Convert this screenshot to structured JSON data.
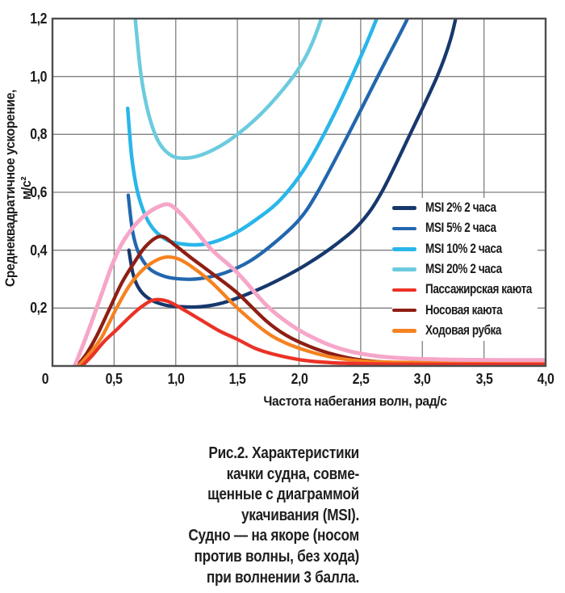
{
  "chart_data": {
    "type": "line",
    "title": "",
    "xlabel": "Частота набегания волн, рад/с",
    "ylabel": "Среднеквадратичное ускорение, м/с²",
    "xlim": [
      0,
      4
    ],
    "ylim": [
      0,
      1.2
    ],
    "grid": true,
    "grid_step_x": 0.5,
    "grid_step_y": 0.2,
    "style": {
      "grid_color": "#7f7f7f",
      "frame_color": "#4d4d4d",
      "text_color": "#1b1b1b",
      "background": "#ffffff"
    },
    "x_ticks": [
      {
        "v": 0,
        "label": "0"
      },
      {
        "v": 0.5,
        "label": "0,5"
      },
      {
        "v": 1.0,
        "label": "1,0"
      },
      {
        "v": 1.5,
        "label": "1,5"
      },
      {
        "v": 2.0,
        "label": "2,0"
      },
      {
        "v": 2.5,
        "label": "2,5"
      },
      {
        "v": 3.0,
        "label": "3,0"
      },
      {
        "v": 3.5,
        "label": "3,5"
      },
      {
        "v": 4.0,
        "label": "4,0"
      }
    ],
    "y_ticks": [
      {
        "v": 1.2,
        "label": "1,2"
      },
      {
        "v": 1.0,
        "label": "1,0"
      },
      {
        "v": 0.8,
        "label": "0,8"
      },
      {
        "v": 0.6,
        "label": "0,6"
      },
      {
        "v": 0.4,
        "label": "0,4"
      },
      {
        "v": 0.2,
        "label": "0,2"
      }
    ],
    "legend": {
      "position": "inside-right",
      "items": [
        {
          "label": "MSI 2% 2 часа",
          "color": "#17386d"
        },
        {
          "label": "MSI 5% 2 часа",
          "color": "#2267ae"
        },
        {
          "label": "MSI 10% 2 часа",
          "color": "#29b6ea"
        },
        {
          "label": "MSI 20% 2 часа",
          "color": "#6ccbde"
        },
        {
          "label": "Пассажирская каюта",
          "color": "#ea3226"
        },
        {
          "label": "Носовая каюта",
          "color": "#8e1e14"
        },
        {
          "label": "Ходовая рубка",
          "color": "#f58220"
        }
      ]
    },
    "series": [
      {
        "name": "MSI 2% 2 часа",
        "color": "#17386d",
        "width": 4.3,
        "points": [
          [
            0.62,
            0.4
          ],
          [
            0.655,
            0.315
          ],
          [
            0.71,
            0.262
          ],
          [
            0.8,
            0.228
          ],
          [
            0.92,
            0.21
          ],
          [
            1.05,
            0.2045
          ],
          [
            1.2,
            0.2045
          ],
          [
            1.38,
            0.218
          ],
          [
            1.58,
            0.248
          ],
          [
            1.8,
            0.29
          ],
          [
            2.05,
            0.348
          ],
          [
            2.3,
            0.42
          ],
          [
            2.5,
            0.495
          ],
          [
            2.67,
            0.6
          ],
          [
            2.9,
            0.8
          ],
          [
            3.12,
            1.0
          ],
          [
            3.23,
            1.13
          ],
          [
            3.3,
            1.26
          ]
        ]
      },
      {
        "name": "MSI 5% 2 часа",
        "color": "#2267ae",
        "width": 4.3,
        "points": [
          [
            0.615,
            0.59
          ],
          [
            0.65,
            0.465
          ],
          [
            0.7,
            0.39
          ],
          [
            0.79,
            0.335
          ],
          [
            0.92,
            0.308
          ],
          [
            1.06,
            0.3
          ],
          [
            1.2,
            0.302
          ],
          [
            1.4,
            0.322
          ],
          [
            1.6,
            0.362
          ],
          [
            1.8,
            0.425
          ],
          [
            2.0,
            0.505
          ],
          [
            2.15,
            0.6
          ],
          [
            2.4,
            0.8
          ],
          [
            2.65,
            1.01
          ],
          [
            2.88,
            1.2
          ],
          [
            2.92,
            1.26
          ]
        ]
      },
      {
        "name": "MSI 10% 2 часа",
        "color": "#29b6ea",
        "width": 4.5,
        "points": [
          [
            0.61,
            0.89
          ],
          [
            0.645,
            0.715
          ],
          [
            0.7,
            0.585
          ],
          [
            0.79,
            0.49
          ],
          [
            0.92,
            0.437
          ],
          [
            1.08,
            0.42
          ],
          [
            1.25,
            0.422
          ],
          [
            1.45,
            0.452
          ],
          [
            1.65,
            0.505
          ],
          [
            1.85,
            0.575
          ],
          [
            2.05,
            0.685
          ],
          [
            2.25,
            0.84
          ],
          [
            2.45,
            1.02
          ],
          [
            2.63,
            1.2
          ],
          [
            2.67,
            1.26
          ]
        ]
      },
      {
        "name": "MSI 20% 2 часа",
        "color": "#6ccbde",
        "width": 4.5,
        "points": [
          [
            0.66,
            1.26
          ],
          [
            0.68,
            1.16
          ],
          [
            0.72,
            1.0
          ],
          [
            0.78,
            0.87
          ],
          [
            0.86,
            0.775
          ],
          [
            0.96,
            0.728
          ],
          [
            1.07,
            0.718
          ],
          [
            1.2,
            0.728
          ],
          [
            1.35,
            0.757
          ],
          [
            1.5,
            0.8
          ],
          [
            1.67,
            0.862
          ],
          [
            1.82,
            0.93
          ],
          [
            1.97,
            1.01
          ],
          [
            2.08,
            1.09
          ],
          [
            2.18,
            1.2
          ],
          [
            2.21,
            1.26
          ]
        ]
      },
      {
        "name": "Носовая каюта",
        "color": "#8e1e14",
        "width": 4.3,
        "points": [
          [
            0.2,
            0
          ],
          [
            0.28,
            0.045
          ],
          [
            0.36,
            0.105
          ],
          [
            0.46,
            0.195
          ],
          [
            0.56,
            0.285
          ],
          [
            0.66,
            0.355
          ],
          [
            0.76,
            0.415
          ],
          [
            0.88,
            0.448
          ],
          [
            1.0,
            0.415
          ],
          [
            1.12,
            0.375
          ],
          [
            1.3,
            0.318
          ],
          [
            1.5,
            0.252
          ],
          [
            1.73,
            0.157
          ],
          [
            1.9,
            0.105
          ],
          [
            2.1,
            0.065
          ],
          [
            2.3,
            0.038
          ],
          [
            2.5,
            0.021
          ],
          [
            2.8,
            0.011
          ],
          [
            3.2,
            0.008
          ],
          [
            4.0,
            0.007
          ]
        ]
      },
      {
        "name": "Ходовая рубка",
        "color": "#f58220",
        "width": 4.3,
        "points": [
          [
            0.21,
            0
          ],
          [
            0.3,
            0.042
          ],
          [
            0.4,
            0.1
          ],
          [
            0.52,
            0.2
          ],
          [
            0.62,
            0.275
          ],
          [
            0.72,
            0.327
          ],
          [
            0.82,
            0.36
          ],
          [
            0.92,
            0.376
          ],
          [
            1.02,
            0.37
          ],
          [
            1.14,
            0.34
          ],
          [
            1.3,
            0.285
          ],
          [
            1.5,
            0.2
          ],
          [
            1.73,
            0.118
          ],
          [
            1.9,
            0.078
          ],
          [
            2.1,
            0.048
          ],
          [
            2.3,
            0.028
          ],
          [
            2.55,
            0.016
          ],
          [
            2.9,
            0.012
          ],
          [
            3.4,
            0.011
          ],
          [
            4.0,
            0.011
          ]
        ]
      },
      {
        "name": "Пассажирская каюта",
        "color": "#ea3226",
        "width": 4.3,
        "points": [
          [
            0.24,
            0
          ],
          [
            0.32,
            0.035
          ],
          [
            0.42,
            0.085
          ],
          [
            0.52,
            0.125
          ],
          [
            0.64,
            0.175
          ],
          [
            0.73,
            0.207
          ],
          [
            0.82,
            0.228
          ],
          [
            0.93,
            0.224
          ],
          [
            1.05,
            0.198
          ],
          [
            1.2,
            0.16
          ],
          [
            1.35,
            0.122
          ],
          [
            1.5,
            0.092
          ],
          [
            1.65,
            0.06
          ],
          [
            1.8,
            0.04
          ],
          [
            2.0,
            0.022
          ],
          [
            2.2,
            0.013
          ],
          [
            2.5,
            0.008
          ],
          [
            3.0,
            0.006
          ],
          [
            3.5,
            0.006
          ],
          [
            4.0,
            0.006
          ]
        ]
      },
      {
        "name": "",
        "color": "#f6a6c8",
        "width": 5,
        "points": [
          [
            0.18,
            0
          ],
          [
            0.25,
            0.075
          ],
          [
            0.32,
            0.155
          ],
          [
            0.4,
            0.25
          ],
          [
            0.48,
            0.345
          ],
          [
            0.56,
            0.42
          ],
          [
            0.66,
            0.482
          ],
          [
            0.76,
            0.524
          ],
          [
            0.86,
            0.55
          ],
          [
            0.95,
            0.557
          ],
          [
            1.05,
            0.522
          ],
          [
            1.16,
            0.468
          ],
          [
            1.3,
            0.398
          ],
          [
            1.5,
            0.322
          ],
          [
            1.73,
            0.212
          ],
          [
            1.9,
            0.152
          ],
          [
            2.05,
            0.112
          ],
          [
            2.25,
            0.072
          ],
          [
            2.45,
            0.047
          ],
          [
            2.7,
            0.031
          ],
          [
            3.0,
            0.024
          ],
          [
            3.4,
            0.021
          ],
          [
            4.0,
            0.02
          ]
        ]
      }
    ]
  },
  "caption": {
    "lines": [
      "Рис.2. Характеристики",
      "качки судна, совме-",
      "щенные с диаграммой",
      "укачивания (MSI).",
      "Судно — на якоре (носом",
      "против волны, без хода)",
      "при волнении 3 балла."
    ]
  }
}
